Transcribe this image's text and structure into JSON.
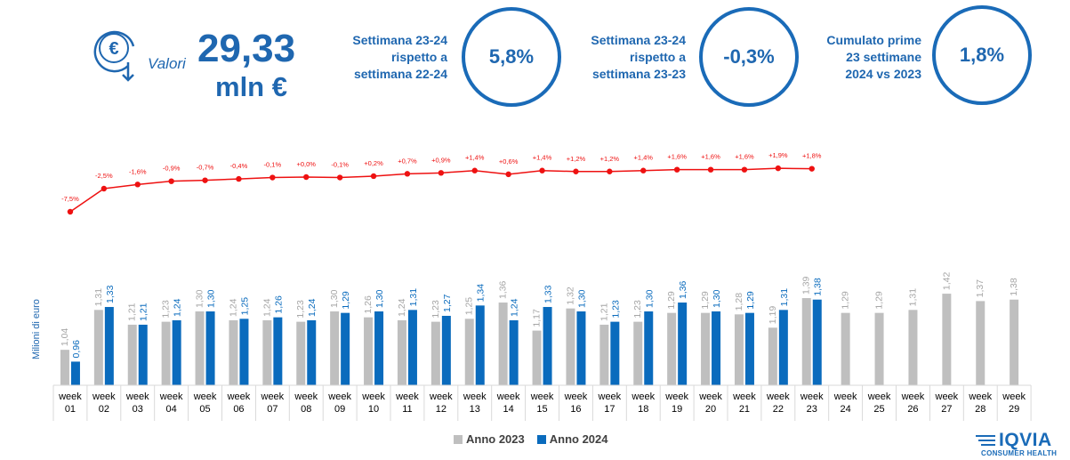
{
  "header": {
    "label": "Valori",
    "value": "29,33",
    "unit": "mln €"
  },
  "kpis": [
    {
      "lines": [
        "Settimana 23-24",
        "rispetto a",
        "settimana 22-24"
      ],
      "value": "5,8%"
    },
    {
      "lines": [
        "Settimana 23-24",
        "rispetto a",
        "settimana 23-23"
      ],
      "value": "-0,3%"
    },
    {
      "lines": [
        "Cumulato prime",
        "23 settimane",
        "2024 vs 2023"
      ],
      "value": "1,8%"
    }
  ],
  "logo": {
    "name": "IQVIA",
    "subtitle": "CONSUMER HEALTH"
  },
  "colors": {
    "accent": "#1f67b0",
    "series_2023": "#bfbfbf",
    "series_2024": "#0a6bbd",
    "growth_line": "#ee1111"
  },
  "chart_data": {
    "type": "bar",
    "ylabel": "Milioni di euro",
    "category_lines": [
      [
        "week",
        "01"
      ],
      [
        "week",
        "02"
      ],
      [
        "week",
        "03"
      ],
      [
        "week",
        "04"
      ],
      [
        "week",
        "05"
      ],
      [
        "week",
        "06"
      ],
      [
        "week",
        "07"
      ],
      [
        "week",
        "08"
      ],
      [
        "week",
        "09"
      ],
      [
        "week",
        "10"
      ],
      [
        "week",
        "11"
      ],
      [
        "week",
        "12"
      ],
      [
        "week",
        "13"
      ],
      [
        "week",
        "14"
      ],
      [
        "week",
        "15"
      ],
      [
        "week",
        "16"
      ],
      [
        "week",
        "17"
      ],
      [
        "week",
        "18"
      ],
      [
        "week",
        "19"
      ],
      [
        "week",
        "20"
      ],
      [
        "week",
        "21"
      ],
      [
        "week",
        "22"
      ],
      [
        "week",
        "23"
      ],
      [
        "week",
        "24"
      ],
      [
        "week",
        "25"
      ],
      [
        "week",
        "26"
      ],
      [
        "week",
        "27"
      ],
      [
        "week",
        "28"
      ],
      [
        "week",
        "29"
      ]
    ],
    "series": [
      {
        "name": "Anno 2023",
        "values": [
          1.04,
          1.31,
          1.21,
          1.23,
          1.3,
          1.24,
          1.24,
          1.23,
          1.3,
          1.26,
          1.24,
          1.23,
          1.25,
          1.36,
          1.17,
          1.32,
          1.21,
          1.23,
          1.29,
          1.29,
          1.28,
          1.19,
          1.39,
          1.29,
          1.29,
          1.31,
          1.42,
          1.37,
          1.38
        ],
        "labels": [
          "1,04",
          "1,31",
          "1,21",
          "1,23",
          "1,30",
          "1,24",
          "1,24",
          "1,23",
          "1,30",
          "1,26",
          "1,24",
          "1,23",
          "1,25",
          "1,36",
          "1,17",
          "1,32",
          "1,21",
          "1,23",
          "1,29",
          "1,29",
          "1,28",
          "1,19",
          "1,39",
          "1,29",
          "1,29",
          "1,31",
          "1,42",
          "1,37",
          "1,38"
        ]
      },
      {
        "name": "Anno 2024",
        "values": [
          0.96,
          1.33,
          1.21,
          1.24,
          1.3,
          1.25,
          1.26,
          1.24,
          1.29,
          1.3,
          1.31,
          1.27,
          1.34,
          1.24,
          1.33,
          1.3,
          1.23,
          1.3,
          1.36,
          1.3,
          1.29,
          1.31,
          1.38
        ],
        "labels": [
          "0,96",
          "1,33",
          "1,21",
          "1,24",
          "1,30",
          "1,25",
          "1,26",
          "1,24",
          "1,29",
          "1,30",
          "1,31",
          "1,27",
          "1,34",
          "1,24",
          "1,33",
          "1,30",
          "1,23",
          "1,30",
          "1,36",
          "1,30",
          "1,29",
          "1,31",
          "1,38"
        ]
      }
    ],
    "growth": {
      "values": [
        -7.5,
        -2.5,
        -1.6,
        -0.9,
        -0.7,
        -0.4,
        -0.1,
        0.0,
        -0.1,
        0.2,
        0.7,
        0.9,
        1.4,
        0.6,
        1.4,
        1.2,
        1.2,
        1.4,
        1.6,
        1.6,
        1.6,
        1.9,
        1.8
      ],
      "labels": [
        "-7,5%",
        "-2,5%",
        "-1,6%",
        "-0,9%",
        "-0,7%",
        "-0,4%",
        "-0,1%",
        "+0,0%",
        "-0,1%",
        "+0,2%",
        "+0,7%",
        "+0,9%",
        "+1,4%",
        "+0,6%",
        "+1,4%",
        "+1,2%",
        "+1,2%",
        "+1,4%",
        "+1,6%",
        "+1,6%",
        "+1,6%",
        "+1,9%",
        "+1,8%"
      ]
    },
    "legend_position": "bottom-center",
    "grid": false
  }
}
